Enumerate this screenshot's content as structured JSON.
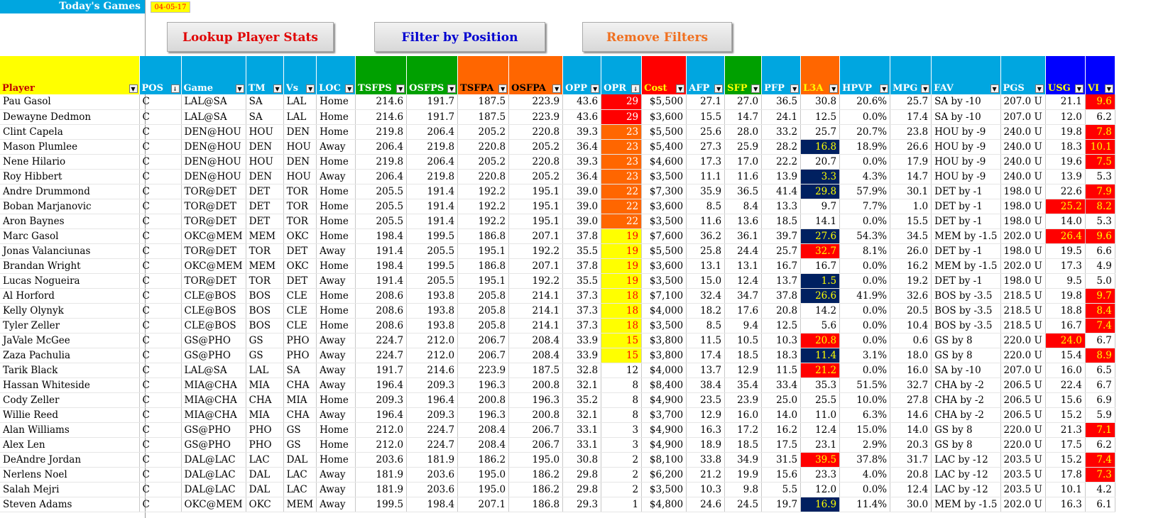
{
  "header": {
    "title": "Today's Games",
    "date": "04-05-17"
  },
  "buttons": {
    "lookup": "Lookup Player Stats",
    "filter": "Filter by Position",
    "remove": "Remove Filters"
  },
  "columns": [
    {
      "label": "Player",
      "bg": "#ffff00",
      "fg": "#c00000",
      "sort": false
    },
    {
      "label": "POS",
      "bg": "#00a6e0",
      "fg": "#ffffff",
      "sort": true
    },
    {
      "label": "Game",
      "bg": "#00a6e0",
      "fg": "#ffffff",
      "sort": false
    },
    {
      "label": "TM",
      "bg": "#00a6e0",
      "fg": "#ffffff",
      "sort": false
    },
    {
      "label": "Vs",
      "bg": "#00a6e0",
      "fg": "#ffffff",
      "sort": false
    },
    {
      "label": "LOC",
      "bg": "#00a6e0",
      "fg": "#ffffff",
      "sort": false
    },
    {
      "label": "TSFPS",
      "bg": "#00a000",
      "fg": "#ffffff",
      "sort": false
    },
    {
      "label": "OSFPS",
      "bg": "#00a000",
      "fg": "#ffffff",
      "sort": false
    },
    {
      "label": "TSFPA",
      "bg": "#ff6600",
      "fg": "#000000",
      "sort": false
    },
    {
      "label": "OSFPA",
      "bg": "#ff6600",
      "fg": "#000000",
      "sort": false
    },
    {
      "label": "OPP",
      "bg": "#00a6e0",
      "fg": "#ffffff",
      "sort": false
    },
    {
      "label": "OPR",
      "bg": "#00a6e0",
      "fg": "#ffffff",
      "sort": true
    },
    {
      "label": "Cost",
      "bg": "#ff0000",
      "fg": "#ffff00",
      "sort": false
    },
    {
      "label": "AFP",
      "bg": "#00a6e0",
      "fg": "#ffffff",
      "sort": false
    },
    {
      "label": "SFP",
      "bg": "#00a000",
      "fg": "#ffff00",
      "sort": false
    },
    {
      "label": "PFP",
      "bg": "#00a6e0",
      "fg": "#ffffff",
      "sort": false
    },
    {
      "label": "L3A",
      "bg": "#ff6600",
      "fg": "#ffff00",
      "sort": false
    },
    {
      "label": "HPVP",
      "bg": "#00a6e0",
      "fg": "#ffffff",
      "sort": false
    },
    {
      "label": "MPG",
      "bg": "#00a6e0",
      "fg": "#ffffff",
      "sort": false
    },
    {
      "label": "FAV",
      "bg": "#00a6e0",
      "fg": "#ffffff",
      "sort": false
    },
    {
      "label": "PGS",
      "bg": "#00a6e0",
      "fg": "#ffffff",
      "sort": false
    },
    {
      "label": "USG",
      "bg": "#0000ff",
      "fg": "#ffff00",
      "sort": false
    },
    {
      "label": "VI",
      "bg": "#0000ff",
      "fg": "#ffff00",
      "sort": false
    }
  ],
  "rows": [
    [
      "Pau Gasol",
      "C",
      "LAL@SA",
      "SA",
      "LAL",
      "Home",
      "214.6",
      "191.7",
      "187.5",
      "223.9",
      "43.6",
      "29",
      "$5,500",
      "27.1",
      "27.0",
      "36.5",
      "30.8",
      "20.6%",
      "25.7",
      "SA by -10",
      "207.0 U",
      "21.1",
      "9.6"
    ],
    [
      "Dewayne Dedmon",
      "C",
      "LAL@SA",
      "SA",
      "LAL",
      "Home",
      "214.6",
      "191.7",
      "187.5",
      "223.9",
      "43.6",
      "29",
      "$3,600",
      "15.5",
      "14.7",
      "24.1",
      "12.5",
      "0.0%",
      "17.4",
      "SA by -10",
      "207.0 U",
      "12.0",
      "6.2"
    ],
    [
      "Clint Capela",
      "C",
      "DEN@HOU",
      "HOU",
      "DEN",
      "Home",
      "219.8",
      "206.4",
      "205.2",
      "220.8",
      "39.3",
      "23",
      "$5,500",
      "25.6",
      "28.0",
      "33.2",
      "25.7",
      "20.7%",
      "23.8",
      "HOU by -9",
      "240.0 U",
      "19.8",
      "7.8"
    ],
    [
      "Mason Plumlee",
      "C",
      "DEN@HOU",
      "DEN",
      "HOU",
      "Away",
      "206.4",
      "219.8",
      "220.8",
      "205.2",
      "36.4",
      "23",
      "$5,400",
      "27.3",
      "25.9",
      "28.2",
      "16.8",
      "18.9%",
      "26.6",
      "HOU by -9",
      "240.0 U",
      "18.3",
      "10.1"
    ],
    [
      "Nene Hilario",
      "C",
      "DEN@HOU",
      "HOU",
      "DEN",
      "Home",
      "219.8",
      "206.4",
      "205.2",
      "220.8",
      "39.3",
      "23",
      "$4,600",
      "17.3",
      "17.0",
      "22.2",
      "20.7",
      "0.0%",
      "17.9",
      "HOU by -9",
      "240.0 U",
      "19.6",
      "7.5"
    ],
    [
      "Roy Hibbert",
      "C",
      "DEN@HOU",
      "DEN",
      "HOU",
      "Away",
      "206.4",
      "219.8",
      "220.8",
      "205.2",
      "36.4",
      "23",
      "$3,500",
      "11.1",
      "11.6",
      "13.9",
      "3.3",
      "4.3%",
      "14.7",
      "HOU by -9",
      "240.0 U",
      "13.9",
      "5.3"
    ],
    [
      "Andre Drummond",
      "C",
      "TOR@DET",
      "DET",
      "TOR",
      "Home",
      "205.5",
      "191.4",
      "192.2",
      "195.1",
      "39.0",
      "22",
      "$7,300",
      "35.9",
      "36.5",
      "41.4",
      "29.8",
      "57.9%",
      "30.1",
      "DET by -1",
      "198.0 U",
      "22.6",
      "7.9"
    ],
    [
      "Boban Marjanovic",
      "C",
      "TOR@DET",
      "DET",
      "TOR",
      "Home",
      "205.5",
      "191.4",
      "192.2",
      "195.1",
      "39.0",
      "22",
      "$3,600",
      "8.5",
      "8.4",
      "13.3",
      "9.7",
      "7.7%",
      "1.0",
      "DET by -1",
      "198.0 U",
      "25.2",
      "8.2"
    ],
    [
      "Aron Baynes",
      "C",
      "TOR@DET",
      "DET",
      "TOR",
      "Home",
      "205.5",
      "191.4",
      "192.2",
      "195.1",
      "39.0",
      "22",
      "$3,500",
      "11.6",
      "13.6",
      "18.5",
      "14.1",
      "0.0%",
      "15.5",
      "DET by -1",
      "198.0 U",
      "14.0",
      "5.3"
    ],
    [
      "Marc Gasol",
      "C",
      "OKC@MEM",
      "MEM",
      "OKC",
      "Home",
      "198.4",
      "199.5",
      "186.8",
      "207.1",
      "37.8",
      "19",
      "$7,600",
      "36.2",
      "36.1",
      "39.7",
      "27.6",
      "54.3%",
      "34.5",
      "MEM by -1.5",
      "202.0 U",
      "26.4",
      "9.6"
    ],
    [
      "Jonas Valanciunas",
      "C",
      "TOR@DET",
      "TOR",
      "DET",
      "Away",
      "191.4",
      "205.5",
      "195.1",
      "192.2",
      "35.5",
      "19",
      "$5,500",
      "25.8",
      "24.4",
      "25.7",
      "32.7",
      "8.1%",
      "26.0",
      "DET by -1",
      "198.0 U",
      "19.5",
      "6.6"
    ],
    [
      "Brandan Wright",
      "C",
      "OKC@MEM",
      "MEM",
      "OKC",
      "Home",
      "198.4",
      "199.5",
      "186.8",
      "207.1",
      "37.8",
      "19",
      "$3,600",
      "13.1",
      "13.1",
      "16.7",
      "16.7",
      "0.0%",
      "16.2",
      "MEM by -1.5",
      "202.0 U",
      "17.3",
      "4.9"
    ],
    [
      "Lucas Nogueira",
      "C",
      "TOR@DET",
      "TOR",
      "DET",
      "Away",
      "191.4",
      "205.5",
      "195.1",
      "192.2",
      "35.5",
      "19",
      "$3,500",
      "15.0",
      "12.4",
      "13.7",
      "1.5",
      "0.0%",
      "19.2",
      "DET by -1",
      "198.0 U",
      "9.5",
      "5.0"
    ],
    [
      "Al Horford",
      "C",
      "CLE@BOS",
      "BOS",
      "CLE",
      "Home",
      "208.6",
      "193.8",
      "205.8",
      "214.1",
      "37.3",
      "18",
      "$7,100",
      "32.4",
      "34.7",
      "37.8",
      "26.6",
      "41.9%",
      "32.6",
      "BOS by -3.5",
      "218.5 U",
      "19.8",
      "9.7"
    ],
    [
      "Kelly Olynyk",
      "C",
      "CLE@BOS",
      "BOS",
      "CLE",
      "Home",
      "208.6",
      "193.8",
      "205.8",
      "214.1",
      "37.3",
      "18",
      "$4,000",
      "18.2",
      "17.6",
      "20.8",
      "14.2",
      "0.0%",
      "20.5",
      "BOS by -3.5",
      "218.5 U",
      "18.8",
      "8.4"
    ],
    [
      "Tyler Zeller",
      "C",
      "CLE@BOS",
      "BOS",
      "CLE",
      "Home",
      "208.6",
      "193.8",
      "205.8",
      "214.1",
      "37.3",
      "18",
      "$3,500",
      "8.5",
      "9.4",
      "12.5",
      "5.6",
      "0.0%",
      "10.4",
      "BOS by -3.5",
      "218.5 U",
      "16.7",
      "7.4"
    ],
    [
      "JaVale McGee",
      "C",
      "GS@PHO",
      "GS",
      "PHO",
      "Away",
      "224.7",
      "212.0",
      "206.7",
      "208.4",
      "33.9",
      "15",
      "$3,800",
      "11.5",
      "10.5",
      "10.3",
      "20.8",
      "0.0%",
      "0.6",
      "GS by 8",
      "220.0 U",
      "24.0",
      "6.7"
    ],
    [
      "Zaza Pachulia",
      "C",
      "GS@PHO",
      "GS",
      "PHO",
      "Away",
      "224.7",
      "212.0",
      "206.7",
      "208.4",
      "33.9",
      "15",
      "$3,800",
      "17.4",
      "18.5",
      "18.3",
      "11.4",
      "3.1%",
      "18.0",
      "GS by 8",
      "220.0 U",
      "15.4",
      "8.9"
    ],
    [
      "Tarik Black",
      "C",
      "LAL@SA",
      "LAL",
      "SA",
      "Away",
      "191.7",
      "214.6",
      "223.9",
      "187.5",
      "32.8",
      "12",
      "$4,000",
      "13.7",
      "12.9",
      "11.5",
      "21.2",
      "0.0%",
      "16.0",
      "SA by -10",
      "207.0 U",
      "16.0",
      "6.5"
    ],
    [
      "Hassan Whiteside",
      "C",
      "MIA@CHA",
      "MIA",
      "CHA",
      "Away",
      "196.4",
      "209.3",
      "196.3",
      "200.8",
      "32.1",
      "8",
      "$8,400",
      "38.4",
      "35.4",
      "33.4",
      "35.3",
      "51.5%",
      "32.7",
      "CHA by -2",
      "206.5 U",
      "22.4",
      "6.7"
    ],
    [
      "Cody Zeller",
      "C",
      "MIA@CHA",
      "CHA",
      "MIA",
      "Home",
      "209.3",
      "196.4",
      "200.8",
      "196.3",
      "35.2",
      "8",
      "$4,900",
      "23.5",
      "23.9",
      "25.0",
      "25.5",
      "10.0%",
      "27.8",
      "CHA by -2",
      "206.5 U",
      "15.6",
      "6.9"
    ],
    [
      "Willie Reed",
      "C",
      "MIA@CHA",
      "MIA",
      "CHA",
      "Away",
      "196.4",
      "209.3",
      "196.3",
      "200.8",
      "32.1",
      "8",
      "$3,700",
      "12.9",
      "16.0",
      "14.0",
      "11.0",
      "6.3%",
      "14.6",
      "CHA by -2",
      "206.5 U",
      "15.2",
      "5.9"
    ],
    [
      "Alan Williams",
      "C",
      "GS@PHO",
      "PHO",
      "GS",
      "Home",
      "212.0",
      "224.7",
      "208.4",
      "206.7",
      "33.1",
      "3",
      "$4,900",
      "16.3",
      "17.2",
      "16.2",
      "12.4",
      "15.0%",
      "14.0",
      "GS by 8",
      "220.0 U",
      "21.3",
      "7.1"
    ],
    [
      "Alex Len",
      "C",
      "GS@PHO",
      "PHO",
      "GS",
      "Home",
      "212.0",
      "224.7",
      "208.4",
      "206.7",
      "33.1",
      "3",
      "$4,900",
      "18.9",
      "18.5",
      "17.5",
      "23.1",
      "2.9%",
      "20.3",
      "GS by 8",
      "220.0 U",
      "17.5",
      "6.2"
    ],
    [
      "DeAndre Jordan",
      "C",
      "DAL@LAC",
      "LAC",
      "DAL",
      "Home",
      "203.6",
      "181.9",
      "186.2",
      "195.0",
      "30.8",
      "2",
      "$8,100",
      "33.8",
      "34.9",
      "31.5",
      "39.5",
      "37.8%",
      "31.7",
      "LAC by -12",
      "203.5 U",
      "15.2",
      "7.4"
    ],
    [
      "Nerlens Noel",
      "C",
      "DAL@LAC",
      "DAL",
      "LAC",
      "Away",
      "181.9",
      "203.6",
      "195.0",
      "186.2",
      "29.8",
      "2",
      "$6,200",
      "21.2",
      "19.9",
      "15.6",
      "23.3",
      "4.0%",
      "20.8",
      "LAC by -12",
      "203.5 U",
      "17.8",
      "7.3"
    ],
    [
      "Salah Mejri",
      "C",
      "DAL@LAC",
      "DAL",
      "LAC",
      "Away",
      "181.9",
      "203.6",
      "195.0",
      "186.2",
      "29.8",
      "2",
      "$3,500",
      "10.3",
      "9.8",
      "5.5",
      "12.0",
      "0.0%",
      "12.4",
      "LAC by -12",
      "203.5 U",
      "10.1",
      "4.2"
    ],
    [
      "Steven Adams",
      "C",
      "OKC@MEM",
      "OKC",
      "MEM",
      "Away",
      "199.5",
      "198.4",
      "207.1",
      "186.8",
      "29.3",
      "1",
      "$4,800",
      "24.6",
      "24.5",
      "19.7",
      "16.9",
      "11.4%",
      "30.0",
      "MEM by -1.5",
      "202.0 U",
      "16.3",
      "6.1"
    ]
  ],
  "highlights": {
    "opr": {
      "29": "hl-red",
      "23": "hl-orange",
      "22": "hl-orange",
      "19": "hl-yellow",
      "18": "hl-yellow",
      "15": "hl-yellow"
    },
    "l3a": {
      "3": "hl-navy",
      "5": "hl-navy",
      "6": "hl-navy",
      "9": "hl-navy",
      "10": "hl-red2",
      "12": "hl-navy",
      "13": "hl-navy",
      "16": "hl-red2",
      "17": "hl-navy",
      "18": "hl-red2",
      "24": "hl-red2",
      "27": "hl-navy"
    },
    "usg": {
      "7": "hl-red2",
      "9": "hl-red2",
      "16": "hl-red2"
    },
    "vi": {
      "0": "hl-red2",
      "2": "hl-red2",
      "3": "hl-red2",
      "4": "hl-red2",
      "6": "hl-red2",
      "7": "hl-red2",
      "9": "hl-red2",
      "13": "hl-red2",
      "14": "hl-red2",
      "15": "hl-red2",
      "17": "hl-red2",
      "22": "hl-red2",
      "24": "hl-red2",
      "25": "hl-red2"
    }
  }
}
